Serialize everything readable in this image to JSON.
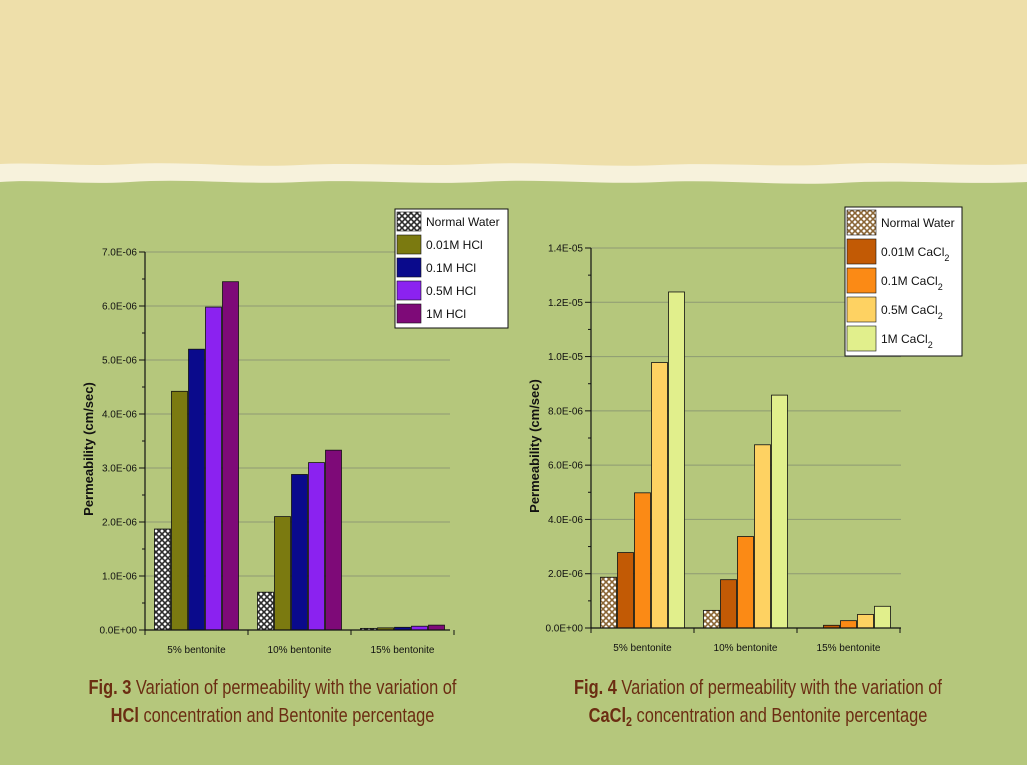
{
  "charts": [
    {
      "id": "fig3",
      "chart_data": {
        "type": "bar",
        "title": "",
        "xlabel": "",
        "ylabel": "Permeability (cm/sec)",
        "categories": [
          "5% bentonite",
          "10% bentonite",
          "15% bentonite"
        ],
        "ylim": [
          0,
          7e-06
        ],
        "yticks": [
          "0.0E+00",
          "1.0E-06",
          "2.0E-06",
          "3.0E-06",
          "4.0E-06",
          "5.0E-06",
          "6.0E-06",
          "7.0E-06"
        ],
        "grid": true,
        "legend_position": "top-right",
        "series": [
          {
            "name": "Normal Water",
            "color": "#2b2b2b",
            "pattern": "crosshatch",
            "values": [
              1.87e-06,
              7e-07,
              3e-08
            ]
          },
          {
            "name": "0.01M HCl",
            "color": "#7b7a10",
            "values": [
              4.42e-06,
              2.1e-06,
              4e-08
            ]
          },
          {
            "name": "0.1M HCl",
            "color": "#0a0a8c",
            "values": [
              5.2e-06,
              2.88e-06,
              5e-08
            ]
          },
          {
            "name": "0.5M HCl",
            "color": "#8b22f0",
            "values": [
              5.98e-06,
              3.1e-06,
              7e-08
            ]
          },
          {
            "name": "1M HCl",
            "color": "#7e0a78",
            "values": [
              6.45e-06,
              3.33e-06,
              9e-08
            ]
          }
        ]
      },
      "caption": {
        "fig_label": "Fig. 3",
        "line1": " Variation of permeability with the variation of",
        "chem": "HCl",
        "line2": " concentration and Bentonite percentage"
      }
    },
    {
      "id": "fig4",
      "chart_data": {
        "type": "bar",
        "title": "",
        "xlabel": "",
        "ylabel": "Permeability (cm/sec)",
        "categories": [
          "5% bentonite",
          "10% bentonite",
          "15% bentonite"
        ],
        "ylim": [
          0,
          1.4e-05
        ],
        "yticks": [
          "0.0E+00",
          "2.0E-06",
          "4.0E-06",
          "6.0E-06",
          "8.0E-06",
          "1.0E-05",
          "1.2E-05",
          "1.4E-05"
        ],
        "grid": true,
        "legend_position": "top-right",
        "series": [
          {
            "name": "Normal Water",
            "color": "#8a6535",
            "pattern": "crosshatch",
            "values": [
              1.87e-06,
              6.5e-07,
              0.0
            ]
          },
          {
            "name": "0.01M CaCl2",
            "color": "#c25a05",
            "values": [
              2.78e-06,
              1.78e-06,
              1e-07
            ]
          },
          {
            "name": "0.1M CaCl2",
            "color": "#fb8a15",
            "values": [
              4.98e-06,
              3.37e-06,
              2.7e-07
            ]
          },
          {
            "name": "0.5M CaCl2",
            "color": "#fed262",
            "values": [
              9.78e-06,
              6.75e-06,
              5e-07
            ]
          },
          {
            "name": "1M CaCl2",
            "color": "#e1ef8c",
            "values": [
              1.238e-05,
              8.58e-06,
              8e-07
            ]
          }
        ]
      },
      "caption": {
        "fig_label": "Fig. 4",
        "line1": " Variation of permeability with the variation of",
        "chem": "CaCl",
        "chem_sub": "2",
        "line2": " concentration and Bentonite percentage"
      }
    }
  ]
}
